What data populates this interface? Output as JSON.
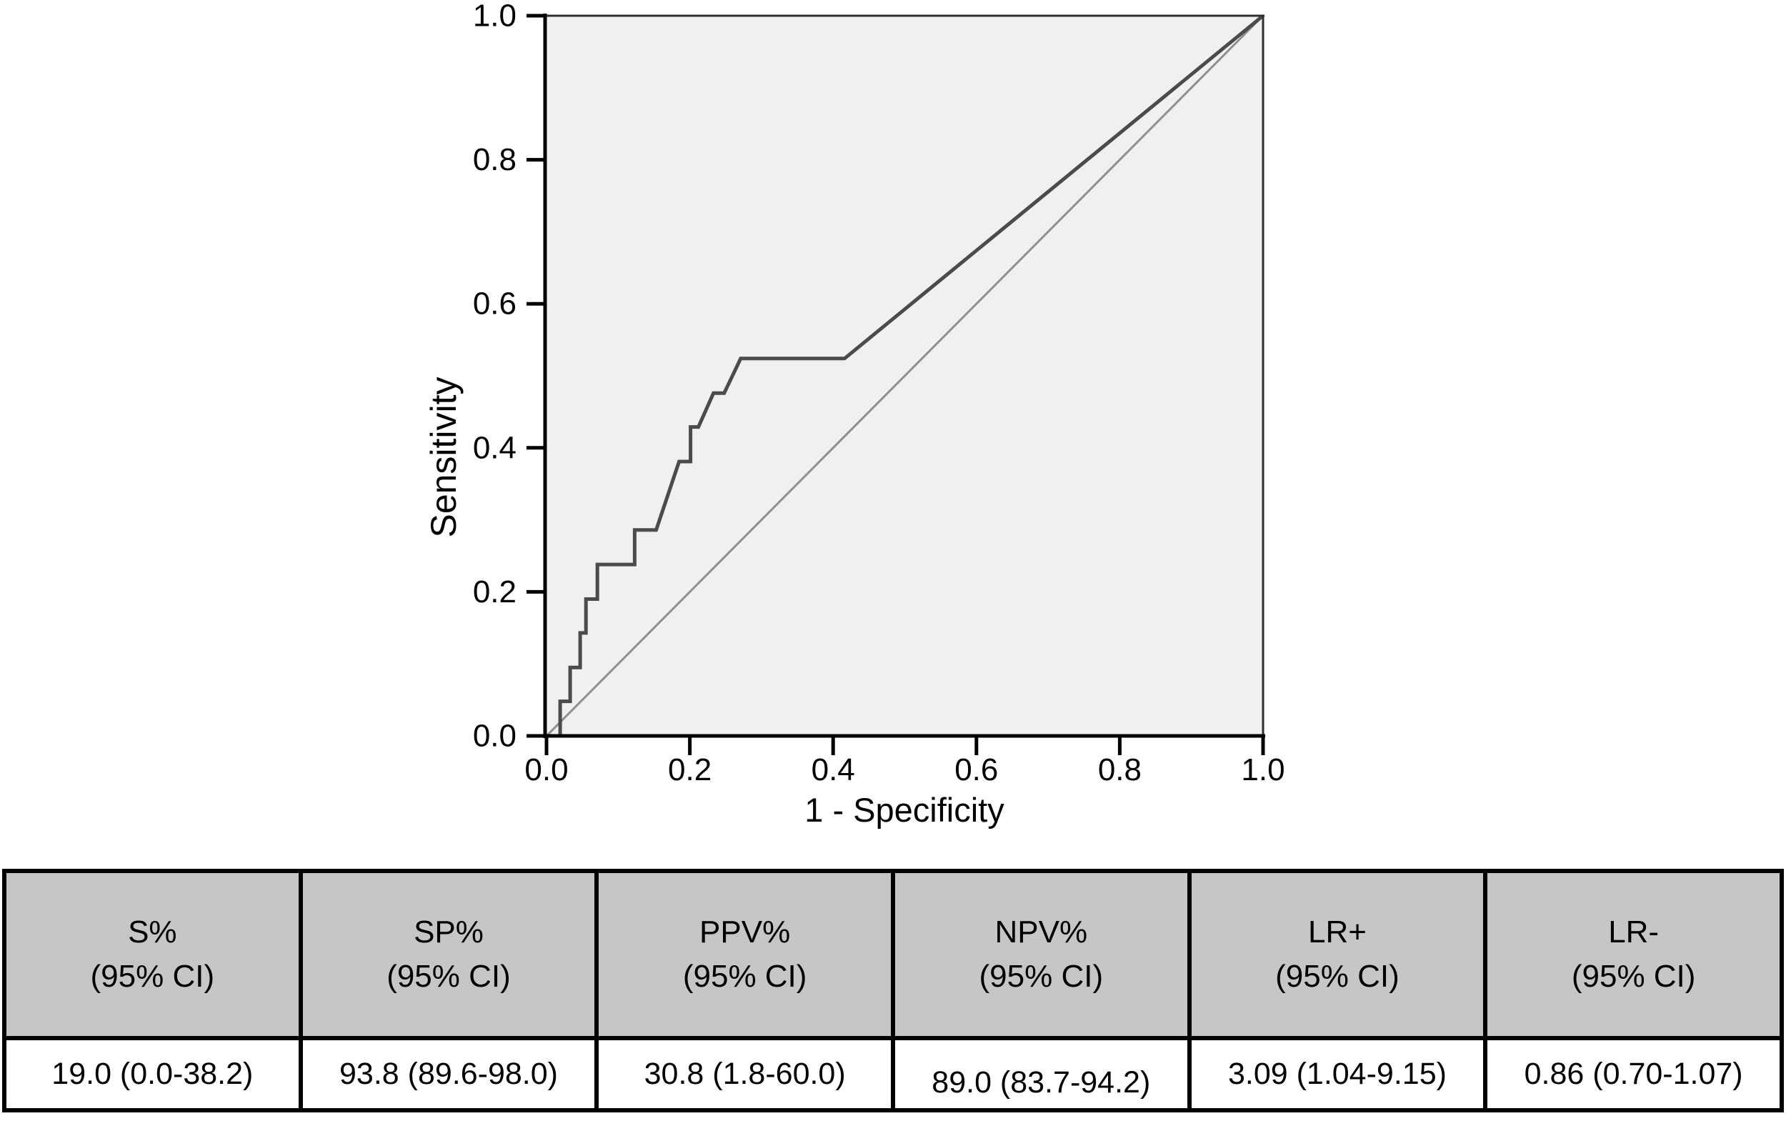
{
  "chart_data": {
    "type": "line",
    "title": "",
    "xlabel": "1 - Specificity",
    "ylabel": "Sensitivity",
    "xlim": [
      0.0,
      1.0
    ],
    "ylim": [
      0.0,
      1.0
    ],
    "xticks": [
      0.0,
      0.2,
      0.4,
      0.6,
      0.8,
      1.0
    ],
    "yticks": [
      0.0,
      0.2,
      0.4,
      0.6,
      0.8,
      1.0
    ],
    "grid": false,
    "legend": "none",
    "plot_bg": "#f0f0f0",
    "frame_color": "#2f2f2f",
    "axis_color": "#000000",
    "series": [
      {
        "name": "reference-line",
        "label": "Reference diagonal",
        "color": "#8f8f8f",
        "width": 3,
        "points": [
          [
            0,
            0
          ],
          [
            1,
            1
          ]
        ]
      },
      {
        "name": "roc-curve",
        "label": "ROC curve",
        "color": "#4b4b4b",
        "width": 5,
        "points": [
          [
            0,
            0
          ],
          [
            0.019,
            0
          ],
          [
            0.019,
            0.048
          ],
          [
            0.033,
            0.048
          ],
          [
            0.033,
            0.095
          ],
          [
            0.047,
            0.095
          ],
          [
            0.047,
            0.143
          ],
          [
            0.055,
            0.143
          ],
          [
            0.055,
            0.19
          ],
          [
            0.071,
            0.19
          ],
          [
            0.071,
            0.238
          ],
          [
            0.123,
            0.238
          ],
          [
            0.123,
            0.286
          ],
          [
            0.153,
            0.286
          ],
          [
            0.185,
            0.381
          ],
          [
            0.201,
            0.381
          ],
          [
            0.201,
            0.429
          ],
          [
            0.212,
            0.429
          ],
          [
            0.233,
            0.476
          ],
          [
            0.248,
            0.476
          ],
          [
            0.271,
            0.524
          ],
          [
            0.416,
            0.524
          ],
          [
            1,
            1
          ]
        ]
      }
    ]
  },
  "table": {
    "header_bg": "#c6c6c6",
    "border_color": "#000000",
    "columns": [
      {
        "header": [
          "S%",
          "(95% CI)"
        ],
        "value": "19.0 (0.0-38.2)"
      },
      {
        "header": [
          "SP%",
          "(95% CI)"
        ],
        "value": "93.8 (89.6-98.0)"
      },
      {
        "header": [
          "PPV%",
          "(95% CI)"
        ],
        "value": "30.8 (1.8-60.0)"
      },
      {
        "header": [
          "NPV%",
          "(95% CI)"
        ],
        "value": "89.0 (83.7-94.2)"
      },
      {
        "header": [
          "LR+",
          "(95% CI)"
        ],
        "value": "3.09 (1.04-9.15)"
      },
      {
        "header": [
          "LR-",
          "(95% CI)"
        ],
        "value": "0.86 (0.70-1.07)"
      }
    ]
  }
}
